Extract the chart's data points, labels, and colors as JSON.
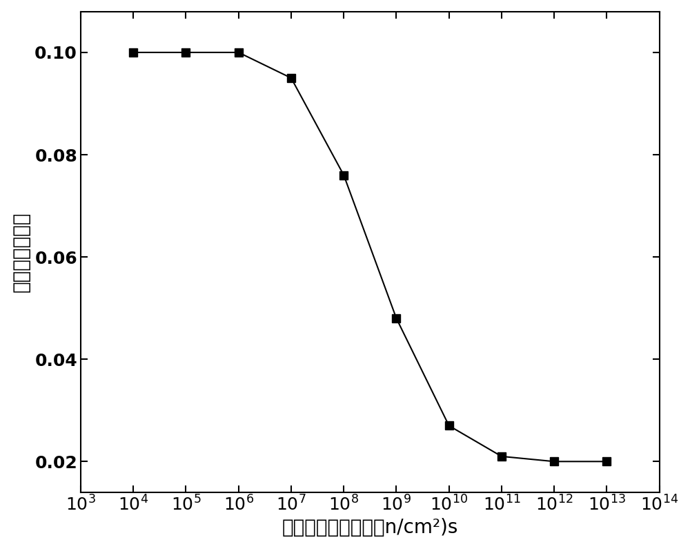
{
  "x": [
    10000.0,
    100000.0,
    1000000.0,
    10000000.0,
    100000000.0,
    1000000000.0,
    10000000000.0,
    100000000000.0,
    1000000000000.0,
    10000000000000.0
  ],
  "y": [
    0.1,
    0.1,
    0.1,
    0.095,
    0.076,
    0.048,
    0.027,
    0.021,
    0.02,
    0.02
  ],
  "xlabel": "中子的辐照注量率（n/cm²)s",
  "ylabel": "稳定缺陷的产率",
  "xlim_min": 1000.0,
  "xlim_max": 100000000000000.0,
  "ylim_min": 0.014,
  "ylim_max": 0.108,
  "line_color": "#000000",
  "marker": "s",
  "marker_size": 9,
  "marker_color": "#000000",
  "line_width": 1.5,
  "xlabel_fontsize": 20,
  "ylabel_fontsize": 20,
  "tick_fontsize": 18,
  "background_color": "#ffffff",
  "yticks": [
    0.02,
    0.04,
    0.06,
    0.08,
    0.1
  ],
  "ytick_labels": [
    "0.02",
    "0.04",
    "0.06",
    "0.08",
    "0.10"
  ],
  "xtick_positions": [
    1000.0,
    10000.0,
    100000.0,
    1000000.0,
    10000000.0,
    100000000.0,
    1000000000.0,
    10000000000.0,
    100000000000.0,
    1000000000000.0,
    10000000000000.0,
    100000000000000.0
  ]
}
